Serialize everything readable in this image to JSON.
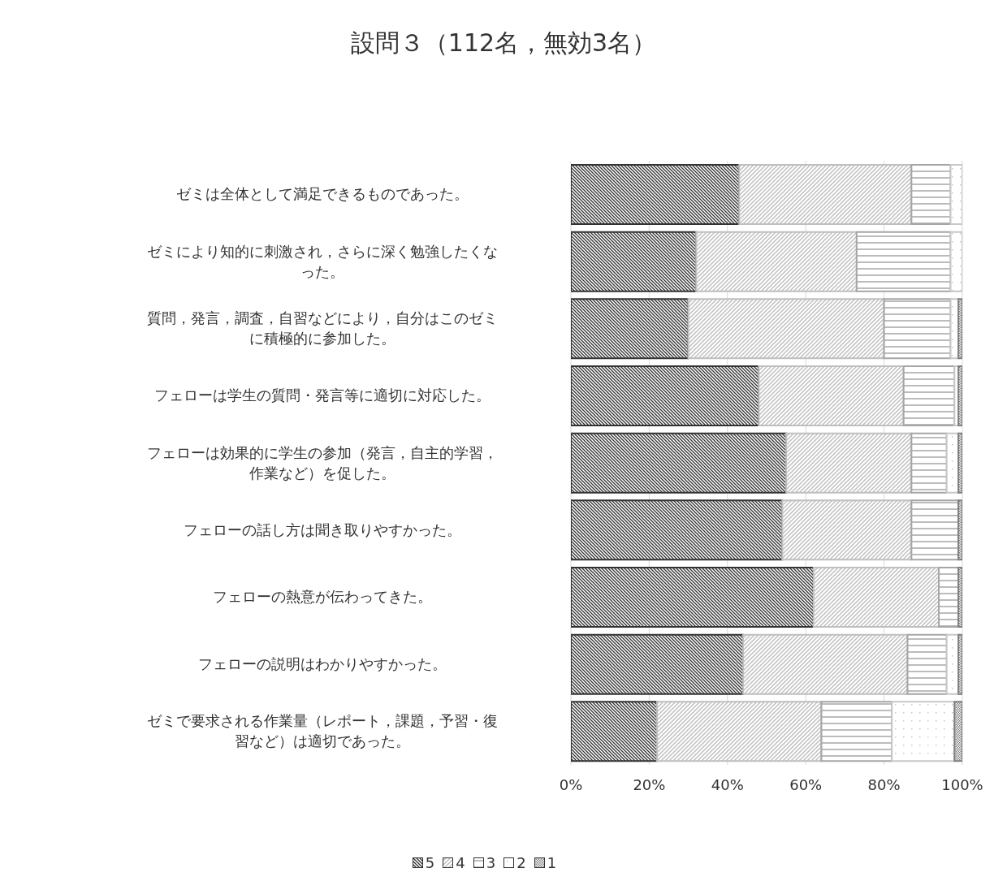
{
  "chart_data": {
    "type": "bar",
    "orientation": "horizontal",
    "stacked": true,
    "title": "設問３（112名，無効3名）",
    "categories": [
      "ゼミは全体として満足できるものであった。",
      "ゼミにより知的に刺激され，さらに深く勉強したくなった。",
      "質問，発言，調査，自習などにより，自分はこのゼミに積極的に参加した。",
      "フェローは学生の質問・発言等に適切に対応した。",
      "フェローは効果的に学生の参加（発言，自主的学習，作業など）を促した。",
      "フェローの話し方は聞き取りやすかった。",
      "フェローの熱意が伝わってきた。",
      "フェローの説明はわかりやすかった。",
      "ゼミで要求される作業量（レポート，課題，予習・復習など）は適切であった。"
    ],
    "series": [
      {
        "name": "5",
        "color": "#333333",
        "values": [
          43,
          32,
          30,
          48,
          55,
          54,
          62,
          44,
          22
        ]
      },
      {
        "name": "4",
        "color": "#bfbfbf",
        "values": [
          44,
          41,
          50,
          37,
          32,
          33,
          32,
          42,
          42
        ]
      },
      {
        "name": "3",
        "color": "#a6a6a6",
        "values": [
          10,
          24,
          17,
          13,
          9,
          12,
          5,
          10,
          18
        ]
      },
      {
        "name": "2",
        "color": "#c8c8c8",
        "values": [
          3,
          3,
          2,
          1,
          3,
          0,
          0,
          3,
          16
        ]
      },
      {
        "name": "1",
        "color": "#7f7f7f",
        "values": [
          0,
          0,
          1,
          1,
          1,
          1,
          1,
          1,
          2
        ]
      }
    ],
    "xlim": [
      0,
      100
    ],
    "xticks": [
      {
        "value": 0,
        "label": "0%"
      },
      {
        "value": 20,
        "label": "20%"
      },
      {
        "value": 40,
        "label": "40%"
      },
      {
        "value": 60,
        "label": "60%"
      },
      {
        "value": 80,
        "label": "80%"
      },
      {
        "value": 100,
        "label": "100%"
      }
    ],
    "grid": "x",
    "legend": "bottom"
  }
}
